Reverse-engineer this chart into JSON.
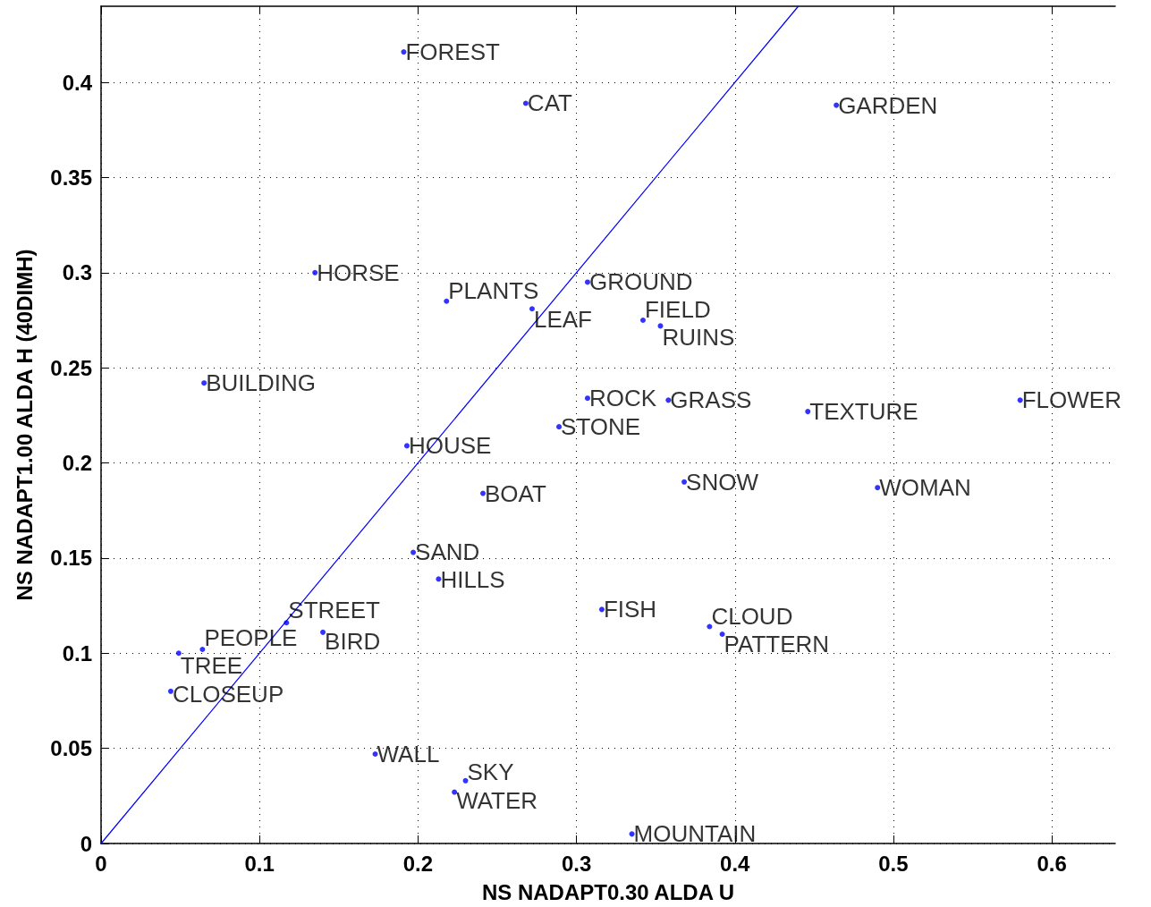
{
  "chart_data": {
    "type": "scatter",
    "xlabel": "NS NADAPT0.30 ALDA U",
    "ylabel": "NS NADAPT1.00 ALDA H (40DIMH)",
    "xlim": [
      0,
      0.64
    ],
    "ylim": [
      0,
      0.44
    ],
    "xticks": [
      0,
      0.1,
      0.2,
      0.3,
      0.4,
      0.5,
      0.6
    ],
    "yticks": [
      0,
      0.05,
      0.1,
      0.15,
      0.2,
      0.25,
      0.3,
      0.35,
      0.4
    ],
    "grid": true,
    "series": [
      {
        "type": "scatter",
        "color": "#0000ff",
        "marker": "circle",
        "x": [
          0.191,
          0.268,
          0.464,
          0.135,
          0.218,
          0.272,
          0.307,
          0.342,
          0.353,
          0.065,
          0.307,
          0.358,
          0.446,
          0.58,
          0.289,
          0.193,
          0.241,
          0.368,
          0.49,
          0.197,
          0.213,
          0.316,
          0.384,
          0.392,
          0.117,
          0.14,
          0.064,
          0.049,
          0.044,
          0.173,
          0.23,
          0.223,
          0.335
        ],
        "values": [
          0.416,
          0.389,
          0.388,
          0.3,
          0.285,
          0.281,
          0.295,
          0.275,
          0.272,
          0.242,
          0.234,
          0.233,
          0.227,
          0.233,
          0.219,
          0.209,
          0.184,
          0.19,
          0.187,
          0.153,
          0.139,
          0.123,
          0.114,
          0.11,
          0.116,
          0.111,
          0.102,
          0.1,
          0.08,
          0.047,
          0.033,
          0.027,
          0.005
        ],
        "value_labels": [
          "FOREST",
          "CAT",
          "GARDEN",
          "HORSE",
          "PLANTS",
          "LEAF",
          "GROUND",
          "FIELD",
          "RUINS",
          "BUILDING",
          "ROCK",
          "GRASS",
          "TEXTURE",
          "FLOWER",
          "STONE",
          "HOUSE",
          "BOAT",
          "SNOW",
          "WOMAN",
          "SAND",
          "HILLS",
          "FISH",
          "CLOUD",
          "PATTERN",
          "STREET",
          "BIRD",
          "PEOPLE",
          "TREE",
          "CLOSEUP",
          "WALL",
          "SKY",
          "WATER",
          "MOUNTAIN"
        ]
      },
      {
        "type": "line",
        "color": "#0000ff",
        "marker": "none",
        "line_style": "solid",
        "x": [
          0,
          0.44
        ],
        "values": [
          0,
          0.44
        ]
      }
    ]
  }
}
